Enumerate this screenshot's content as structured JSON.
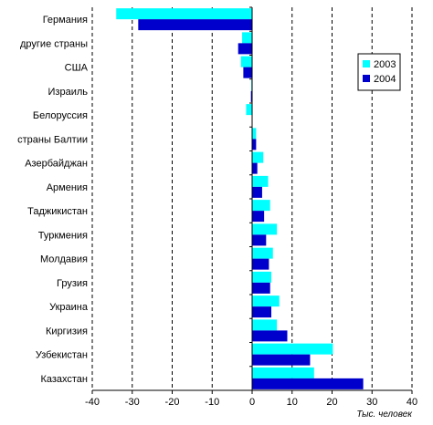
{
  "chart_data": {
    "type": "bar",
    "orientation": "horizontal",
    "categories": [
      "Германия",
      "другие страны",
      "США",
      "Израиль",
      "Белоруссия",
      "страны Балтии",
      "Азербайджан",
      "Армения",
      "Таджикистан",
      "Туркмения",
      "Молдавия",
      "Грузия",
      "Украина",
      "Киргизия",
      "Узбекистан",
      "Казахстан"
    ],
    "series": [
      {
        "name": "2003",
        "color": "#00FFFF",
        "values": [
          -34,
          -2.5,
          -2.8,
          -0.2,
          -1.5,
          1,
          2.8,
          4,
          4.5,
          6.2,
          5.2,
          4.8,
          6.8,
          6.2,
          20.2,
          15.5
        ]
      },
      {
        "name": "2004",
        "color": "#0000CC",
        "values": [
          -28.5,
          -3.5,
          -2.2,
          -0.3,
          0,
          1,
          1.3,
          2.5,
          3,
          3.5,
          4.2,
          4.5,
          4.8,
          8.8,
          14.5,
          27.8
        ]
      }
    ],
    "xlim": [
      -40,
      40
    ],
    "xticks": [
      -40,
      -30,
      -20,
      -10,
      0,
      10,
      20,
      30,
      40
    ],
    "xlabel": "Тыс. человек",
    "grid": "vertical dashed",
    "legend_position": "top-right"
  }
}
